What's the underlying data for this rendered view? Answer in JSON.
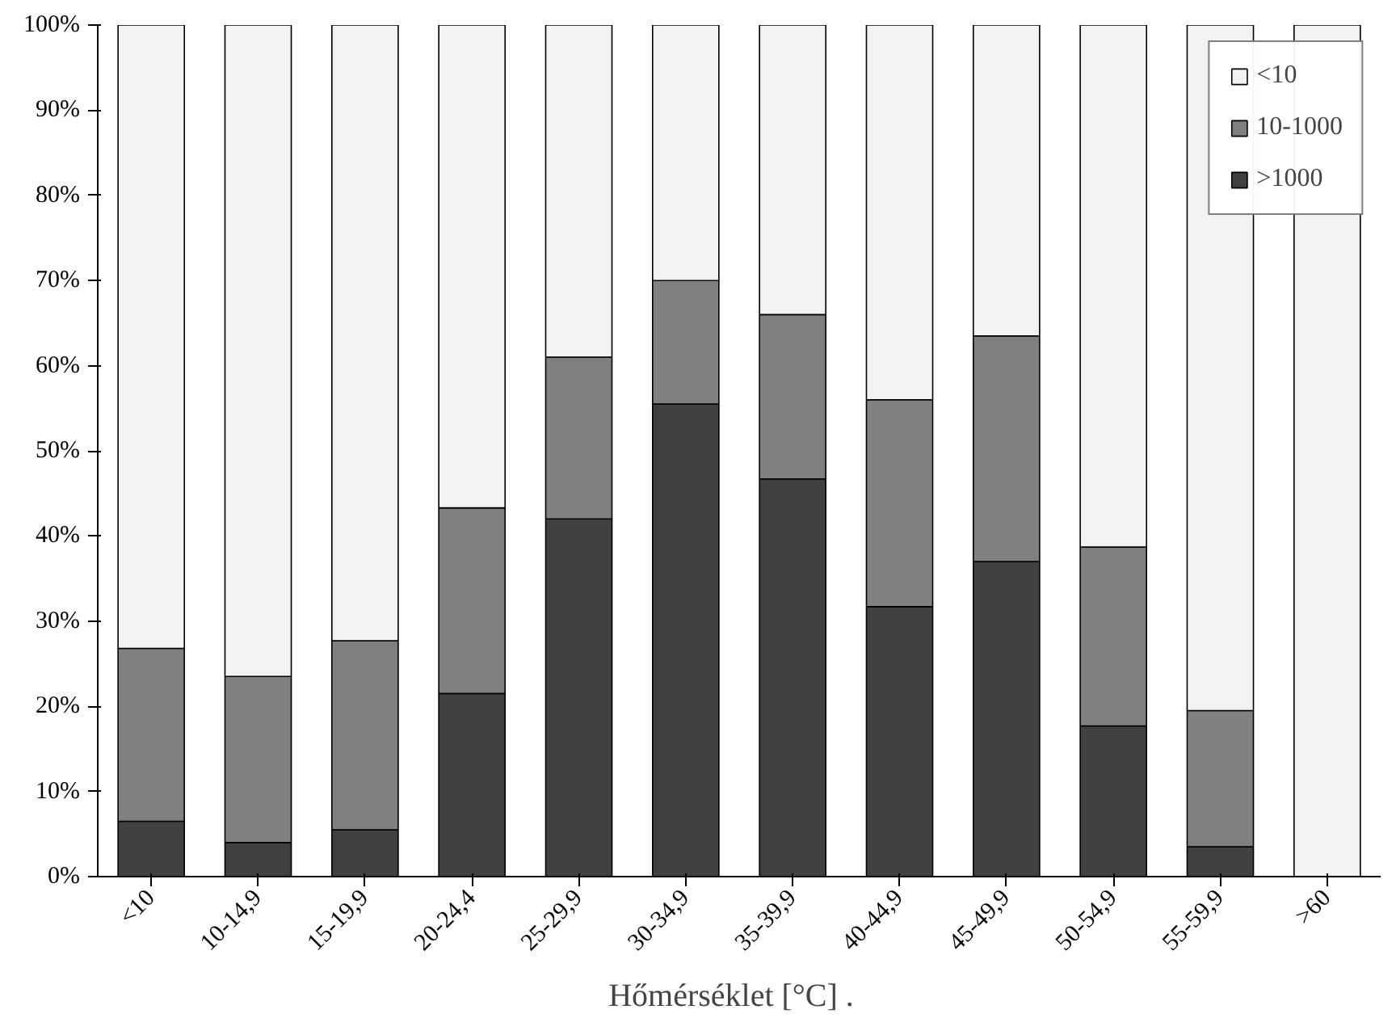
{
  "chart_data": {
    "type": "bar",
    "stacked": true,
    "xlabel": "Hőmérséklet [°C]   .",
    "categories": [
      "<10",
      "10-14,9",
      "15-19,9",
      "20-24,4",
      "25-29,9",
      "30-34,9",
      "35-39,9",
      "40-44,9",
      "45-49,9",
      "50-54,9",
      "55-59,9",
      ">60"
    ],
    "series": [
      {
        "name": ">1000",
        "color": "#404040",
        "values": [
          6.5,
          4,
          5.5,
          21.5,
          42,
          55.5,
          46.7,
          31.7,
          37,
          17.7,
          3.5,
          0
        ]
      },
      {
        "name": "10-1000",
        "color": "#808080",
        "values": [
          20.3,
          19.5,
          22.2,
          21.8,
          19,
          14.5,
          19.3,
          24.3,
          26.5,
          21,
          16,
          0
        ]
      },
      {
        "name": "<10",
        "color": "#f2f2f2",
        "values": [
          73.2,
          76.5,
          72.3,
          56.7,
          39,
          30,
          34,
          44,
          36.5,
          61.3,
          80.5,
          100
        ]
      }
    ],
    "ylim": [
      0,
      100
    ],
    "yticks": [
      {
        "value": 0,
        "label": "0%"
      },
      {
        "value": 10,
        "label": "10%"
      },
      {
        "value": 20,
        "label": "20%"
      },
      {
        "value": 30,
        "label": "30%"
      },
      {
        "value": 40,
        "label": "40%"
      },
      {
        "value": 50,
        "label": "50%"
      },
      {
        "value": 60,
        "label": "60%"
      },
      {
        "value": 70,
        "label": "70%"
      },
      {
        "value": 80,
        "label": "80%"
      },
      {
        "value": 90,
        "label": "90%"
      },
      {
        "value": 100,
        "label": "100%"
      }
    ],
    "grid": false,
    "legend": "top right"
  }
}
